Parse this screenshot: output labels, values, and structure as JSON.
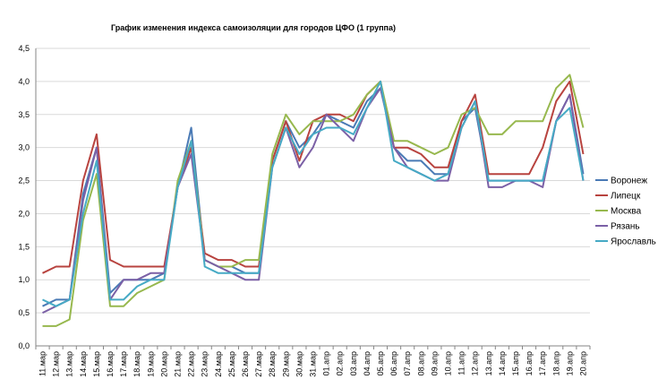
{
  "chart_data": {
    "type": "line",
    "title": "График изменения индекса самоизоляции для городов ЦФО (1 группа)",
    "xlabel": "",
    "ylabel": "",
    "ylim": [
      0,
      4.5
    ],
    "yticks": [
      "0,0",
      "0,5",
      "1,0",
      "1,5",
      "2,0",
      "2,5",
      "3,0",
      "3,5",
      "4,0",
      "4,5"
    ],
    "grid": true,
    "legend_position": "right",
    "categories": [
      "11.мар",
      "12.мар",
      "13.мар",
      "14.мар",
      "15.мар",
      "16.мар",
      "17.мар",
      "18.мар",
      "19.мар",
      "20.мар",
      "21.мар",
      "22.мар",
      "23.мар",
      "24.мар",
      "25.мар",
      "26.мар",
      "27.мар",
      "28.мар",
      "29.мар",
      "30.мар",
      "31.мар",
      "01.апр",
      "02.апр",
      "03.апр",
      "04.апр",
      "05.апр",
      "06.апр",
      "07.апр",
      "08.апр",
      "09.апр",
      "10.апр",
      "11.апр",
      "12.апр",
      "13.апр",
      "14.апр",
      "15.апр",
      "16.апр",
      "17.апр",
      "18.апр",
      "19.апр",
      "20.апр"
    ],
    "series": [
      {
        "name": "Воронеж",
        "color": "#4a7ab5",
        "values": [
          0.6,
          0.7,
          0.7,
          2.3,
          3.0,
          0.8,
          1.0,
          1.0,
          1.0,
          1.1,
          2.4,
          3.3,
          1.3,
          1.2,
          1.2,
          1.1,
          1.1,
          2.8,
          3.4,
          3.0,
          3.2,
          3.5,
          3.4,
          3.3,
          3.7,
          3.9,
          3.0,
          2.8,
          2.8,
          2.6,
          2.6,
          3.4,
          3.6,
          2.5,
          2.5,
          2.5,
          2.5,
          2.5,
          3.4,
          3.8,
          2.6
        ]
      },
      {
        "name": "Липецк",
        "color": "#b8433f",
        "values": [
          1.1,
          1.2,
          1.2,
          2.5,
          3.2,
          1.3,
          1.2,
          1.2,
          1.2,
          1.2,
          2.4,
          3.0,
          1.4,
          1.3,
          1.3,
          1.2,
          1.2,
          2.8,
          3.4,
          2.8,
          3.4,
          3.5,
          3.5,
          3.4,
          3.8,
          4.0,
          3.0,
          3.0,
          2.9,
          2.7,
          2.7,
          3.4,
          3.8,
          2.6,
          2.6,
          2.6,
          2.6,
          3.0,
          3.7,
          4.0,
          2.9
        ]
      },
      {
        "name": "Москва",
        "color": "#97b84e",
        "values": [
          0.3,
          0.3,
          0.4,
          1.9,
          2.6,
          0.6,
          0.6,
          0.8,
          0.9,
          1.0,
          2.5,
          3.1,
          1.3,
          1.2,
          1.2,
          1.3,
          1.3,
          2.9,
          3.5,
          3.2,
          3.4,
          3.4,
          3.4,
          3.5,
          3.8,
          4.0,
          3.1,
          3.1,
          3.0,
          2.9,
          3.0,
          3.5,
          3.6,
          3.2,
          3.2,
          3.4,
          3.4,
          3.4,
          3.9,
          4.1,
          3.3
        ]
      },
      {
        "name": "Рязань",
        "color": "#7b60a6",
        "values": [
          0.5,
          0.6,
          0.7,
          2.2,
          3.0,
          0.7,
          1.0,
          1.0,
          1.1,
          1.1,
          2.4,
          2.9,
          1.3,
          1.2,
          1.1,
          1.0,
          1.0,
          2.7,
          3.3,
          2.7,
          3.0,
          3.5,
          3.3,
          3.1,
          3.6,
          3.9,
          3.0,
          2.7,
          2.6,
          2.5,
          2.5,
          3.3,
          3.7,
          2.4,
          2.4,
          2.5,
          2.5,
          2.4,
          3.4,
          3.8,
          2.5
        ]
      },
      {
        "name": "Ярославль",
        "color": "#46aac5",
        "values": [
          0.7,
          0.6,
          0.7,
          2.0,
          2.8,
          0.7,
          0.7,
          0.9,
          1.0,
          1.0,
          2.4,
          3.1,
          1.2,
          1.1,
          1.1,
          1.1,
          1.1,
          2.7,
          3.3,
          2.9,
          3.2,
          3.3,
          3.3,
          3.2,
          3.6,
          4.0,
          2.8,
          2.7,
          2.6,
          2.5,
          2.6,
          3.3,
          3.7,
          2.5,
          2.5,
          2.5,
          2.5,
          2.5,
          3.4,
          3.6,
          2.5
        ]
      }
    ]
  }
}
